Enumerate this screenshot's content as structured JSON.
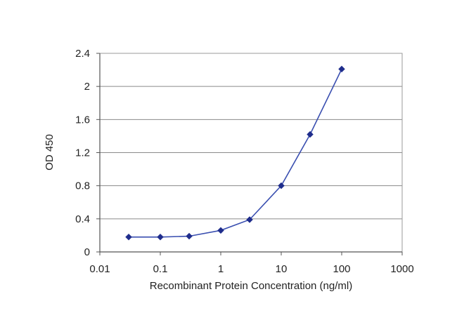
{
  "chart_data": {
    "type": "line",
    "title": "",
    "xlabel": "Recombinant Protein Concentration (ng/ml)",
    "ylabel": "OD 450",
    "x_scale": "log",
    "xlim": [
      0.01,
      1000
    ],
    "ylim": [
      0,
      2.4
    ],
    "x_ticks": [
      {
        "value": 0.01,
        "label": "0.01"
      },
      {
        "value": 0.1,
        "label": "0.1"
      },
      {
        "value": 1,
        "label": "1"
      },
      {
        "value": 10,
        "label": "10"
      },
      {
        "value": 100,
        "label": "100"
      },
      {
        "value": 1000,
        "label": "1000"
      }
    ],
    "y_ticks": [
      {
        "value": 0,
        "label": "0"
      },
      {
        "value": 0.4,
        "label": "0.4"
      },
      {
        "value": 0.8,
        "label": "0.8"
      },
      {
        "value": 1.2,
        "label": "1.2"
      },
      {
        "value": 1.6,
        "label": "1.6"
      },
      {
        "value": 2.0,
        "label": "2"
      },
      {
        "value": 2.4,
        "label": "2.4"
      }
    ],
    "grid": "horizontal",
    "legend": "none",
    "series": [
      {
        "x": [
          0.03,
          0.1,
          0.3,
          1,
          3,
          10,
          30,
          100
        ],
        "y": [
          0.18,
          0.18,
          0.19,
          0.26,
          0.39,
          0.8,
          1.42,
          2.21
        ]
      }
    ],
    "colors": {
      "line": "#3a4fb0",
      "marker": "#1f2d8c",
      "grid": "#8a8a8a",
      "axis": "#555555",
      "plot_border": "#9a9a9a"
    }
  }
}
